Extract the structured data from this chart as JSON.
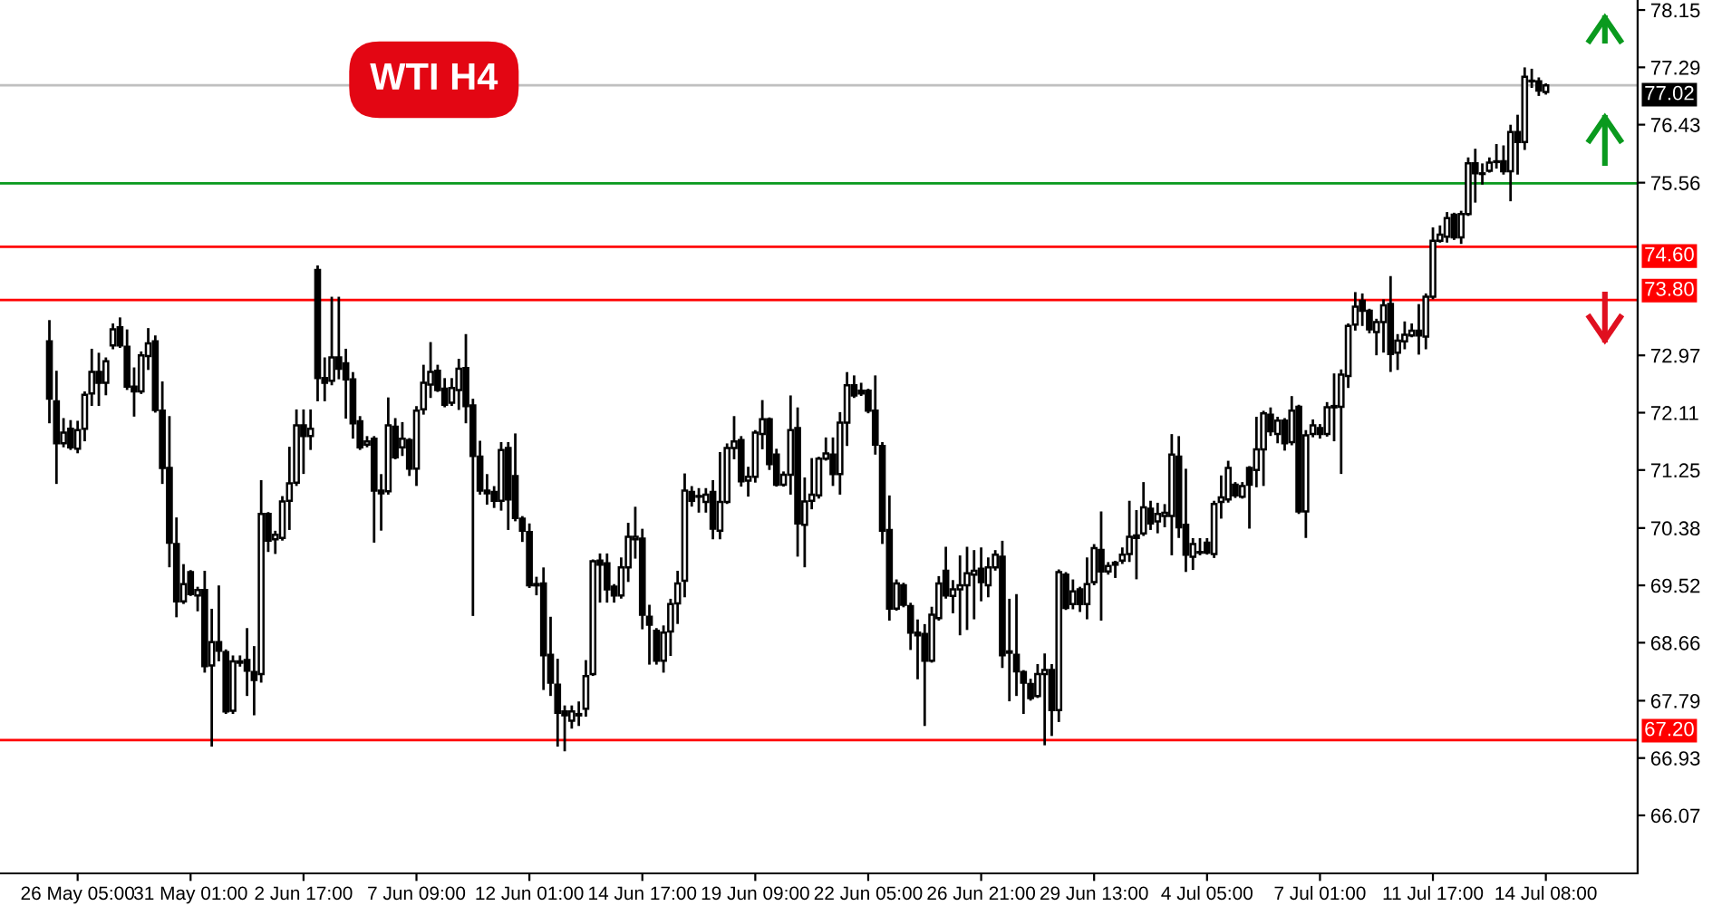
{
  "chart_data": {
    "type": "candlestick",
    "title": "WTI H4",
    "categories": [
      null,
      null,
      null,
      null,
      "26 May 05:00",
      null,
      null,
      null,
      null,
      null,
      null,
      null,
      null,
      null,
      null,
      null,
      null,
      null,
      null,
      null,
      "31 May 01:00",
      null,
      null,
      null,
      null,
      null,
      null,
      null,
      null,
      null,
      null,
      null,
      null,
      null,
      null,
      null,
      "2 Jun 17:00",
      null,
      null,
      null,
      null,
      null,
      null,
      null,
      null,
      null,
      null,
      null,
      null,
      null,
      null,
      null,
      "7 Jun 09:00",
      null,
      null,
      null,
      null,
      null,
      null,
      null,
      null,
      null,
      null,
      null,
      null,
      null,
      null,
      null,
      "12 Jun 01:00",
      null,
      null,
      null,
      null,
      null,
      null,
      null,
      null,
      null,
      null,
      null,
      null,
      null,
      null,
      null,
      "14 Jun 17:00",
      null,
      null,
      null,
      null,
      null,
      null,
      null,
      null,
      null,
      null,
      null,
      null,
      null,
      null,
      null,
      "19 Jun 09:00",
      null,
      null,
      null,
      null,
      null,
      null,
      null,
      null,
      null,
      null,
      null,
      null,
      null,
      null,
      null,
      "22 Jun 05:00",
      null,
      null,
      null,
      null,
      null,
      null,
      null,
      null,
      null,
      null,
      null,
      null,
      null,
      null,
      null,
      "26 Jun 21:00",
      null,
      null,
      null,
      null,
      null,
      null,
      null,
      null,
      null,
      null,
      null,
      null,
      null,
      null,
      null,
      "29 Jun 13:00",
      null,
      null,
      null,
      null,
      null,
      null,
      null,
      null,
      null,
      null,
      null,
      null,
      null,
      null,
      null,
      "4 Jul 05:00",
      null,
      null,
      null,
      null,
      null,
      null,
      null,
      null,
      null,
      null,
      null,
      null,
      null,
      null,
      null,
      "7 Jul 01:00",
      null,
      null,
      null,
      null,
      null,
      null,
      null,
      null,
      null,
      null,
      null,
      null,
      null,
      null,
      null,
      "11 Jul 17:00",
      null,
      null,
      null,
      null,
      null,
      null,
      null,
      null,
      null,
      null,
      null,
      null,
      null,
      null,
      null,
      "14 Jul 08:00"
    ],
    "ohlc": [
      [
        73.18,
        73.48,
        71.97,
        72.32
      ],
      [
        72.28,
        72.72,
        71.06,
        71.65
      ],
      [
        71.65,
        72.01,
        71.61,
        71.81
      ],
      [
        71.87,
        71.98,
        71.57,
        71.59
      ],
      [
        71.57,
        71.97,
        71.52,
        71.85
      ],
      [
        71.87,
        72.41,
        71.7,
        72.38
      ],
      [
        72.4,
        73.05,
        72.23,
        72.72
      ],
      [
        72.72,
        72.99,
        72.23,
        72.56
      ],
      [
        72.56,
        72.92,
        72.39,
        72.88
      ],
      [
        73.12,
        73.43,
        73.08,
        73.36
      ],
      [
        73.39,
        73.52,
        73.1,
        73.12
      ],
      [
        73.1,
        73.34,
        72.47,
        72.5
      ],
      [
        72.5,
        72.77,
        72.07,
        72.43
      ],
      [
        72.43,
        73.01,
        72.41,
        72.97
      ],
      [
        72.96,
        73.36,
        72.77,
        73.15
      ],
      [
        73.18,
        73.25,
        72.13,
        72.15
      ],
      [
        72.14,
        72.56,
        71.06,
        71.28
      ],
      [
        71.28,
        72.04,
        69.81,
        70.16
      ],
      [
        70.14,
        70.52,
        69.06,
        69.28
      ],
      [
        69.28,
        69.82,
        69.26,
        69.54
      ],
      [
        69.72,
        69.73,
        69.38,
        69.39
      ],
      [
        69.37,
        69.48,
        69.15,
        69.45
      ],
      [
        69.45,
        69.72,
        68.23,
        68.31
      ],
      [
        68.32,
        69.15,
        67.12,
        68.67
      ],
      [
        68.67,
        69.5,
        68.4,
        68.54
      ],
      [
        68.52,
        68.54,
        67.61,
        67.63
      ],
      [
        67.64,
        68.45,
        67.61,
        68.38
      ],
      [
        68.36,
        68.45,
        68.32,
        68.38
      ],
      [
        68.4,
        68.86,
        67.88,
        68.24
      ],
      [
        68.22,
        68.59,
        67.59,
        68.1
      ],
      [
        68.19,
        71.08,
        68.08,
        70.59
      ],
      [
        70.59,
        70.6,
        70.04,
        70.19
      ],
      [
        70.21,
        70.32,
        70.01,
        70.28
      ],
      [
        70.23,
        70.84,
        70.21,
        70.78
      ],
      [
        70.79,
        71.58,
        70.37,
        71.05
      ],
      [
        71.06,
        72.14,
        71.03,
        71.92
      ],
      [
        71.92,
        72.14,
        71.21,
        71.76
      ],
      [
        71.76,
        72.14,
        71.57,
        71.87
      ],
      [
        74.25,
        74.3,
        72.3,
        72.63
      ],
      [
        72.63,
        72.92,
        72.3,
        72.56
      ],
      [
        72.59,
        73.83,
        72.54,
        72.94
      ],
      [
        72.94,
        73.83,
        72.63,
        72.77
      ],
      [
        72.85,
        73.05,
        72.04,
        72.61
      ],
      [
        72.61,
        72.7,
        71.74,
        71.95
      ],
      [
        71.98,
        72.04,
        71.57,
        71.59
      ],
      [
        71.63,
        71.74,
        71.61,
        71.68
      ],
      [
        71.72,
        71.74,
        70.18,
        70.94
      ],
      [
        70.94,
        71.17,
        70.36,
        70.9
      ],
      [
        70.93,
        72.32,
        70.9,
        71.92
      ],
      [
        71.9,
        72.01,
        71.43,
        71.44
      ],
      [
        71.59,
        71.95,
        71.48,
        71.72
      ],
      [
        71.7,
        71.71,
        71.18,
        71.27
      ],
      [
        71.27,
        72.19,
        71.03,
        72.14
      ],
      [
        72.16,
        72.81,
        72.1,
        72.56
      ],
      [
        72.53,
        73.15,
        72.35,
        72.72
      ],
      [
        72.74,
        72.81,
        72.44,
        72.45
      ],
      [
        72.47,
        72.61,
        72.21,
        72.23
      ],
      [
        72.26,
        72.61,
        72.23,
        72.48
      ],
      [
        72.45,
        72.9,
        72.17,
        72.77
      ],
      [
        72.78,
        73.27,
        71.97,
        72.21
      ],
      [
        72.22,
        72.3,
        69.08,
        71.46
      ],
      [
        71.45,
        71.67,
        70.9,
        70.94
      ],
      [
        70.94,
        71.17,
        70.75,
        70.9
      ],
      [
        70.92,
        70.99,
        70.7,
        70.79
      ],
      [
        70.79,
        71.65,
        70.66,
        71.55
      ],
      [
        71.58,
        71.65,
        70.37,
        70.81
      ],
      [
        71.16,
        71.78,
        70.5,
        70.53
      ],
      [
        70.52,
        70.54,
        70.19,
        70.34
      ],
      [
        70.32,
        70.43,
        69.5,
        69.52
      ],
      [
        69.54,
        69.63,
        69.39,
        69.52
      ],
      [
        69.55,
        69.77,
        67.97,
        68.47
      ],
      [
        68.48,
        69.03,
        67.88,
        68.06
      ],
      [
        68.03,
        68.4,
        67.12,
        67.61
      ],
      [
        67.63,
        67.7,
        67.05,
        67.57
      ],
      [
        67.49,
        67.7,
        67.39,
        67.63
      ],
      [
        67.57,
        67.76,
        67.43,
        67.59
      ],
      [
        67.67,
        68.38,
        67.57,
        68.16
      ],
      [
        68.19,
        69.89,
        68.18,
        69.88
      ],
      [
        69.89,
        69.98,
        69.28,
        69.83
      ],
      [
        69.85,
        69.98,
        69.28,
        69.46
      ],
      [
        69.5,
        69.52,
        69.28,
        69.37
      ],
      [
        69.37,
        69.92,
        69.34,
        69.79
      ],
      [
        69.79,
        70.44,
        69.59,
        70.25
      ],
      [
        70.21,
        70.68,
        69.94,
        70.25
      ],
      [
        70.22,
        70.35,
        68.88,
        69.08
      ],
      [
        69.05,
        69.21,
        68.35,
        68.93
      ],
      [
        68.84,
        68.86,
        68.35,
        68.39
      ],
      [
        68.39,
        68.9,
        68.23,
        68.81
      ],
      [
        68.83,
        69.3,
        68.48,
        69.24
      ],
      [
        69.25,
        69.72,
        68.96,
        69.55
      ],
      [
        69.59,
        71.18,
        69.36,
        70.94
      ],
      [
        70.92,
        70.99,
        70.72,
        70.79
      ],
      [
        70.86,
        70.96,
        70.63,
        70.85
      ],
      [
        70.77,
        70.96,
        70.63,
        70.88
      ],
      [
        70.92,
        71.08,
        70.23,
        70.37
      ],
      [
        70.34,
        71.5,
        70.23,
        70.77
      ],
      [
        70.77,
        71.63,
        70.76,
        71.58
      ],
      [
        71.58,
        72.04,
        71.43,
        71.68
      ],
      [
        71.7,
        71.74,
        71.02,
        71.08
      ],
      [
        71.09,
        71.28,
        70.87,
        71.15
      ],
      [
        71.15,
        71.83,
        71.08,
        71.81
      ],
      [
        71.79,
        72.28,
        71.58,
        72.01
      ],
      [
        72.01,
        72.02,
        71.27,
        71.34
      ],
      [
        71.48,
        71.55,
        71.02,
        71.03
      ],
      [
        71.03,
        71.21,
        71.02,
        71.18
      ],
      [
        71.18,
        72.35,
        70.9,
        71.85
      ],
      [
        71.88,
        72.17,
        69.97,
        70.45
      ],
      [
        70.43,
        71.12,
        69.81,
        70.78
      ],
      [
        70.79,
        71.41,
        70.68,
        70.88
      ],
      [
        70.87,
        71.43,
        70.84,
        71.42
      ],
      [
        71.42,
        71.72,
        71.41,
        71.5
      ],
      [
        71.48,
        71.72,
        71.03,
        71.19
      ],
      [
        71.19,
        72.1,
        70.9,
        71.96
      ],
      [
        71.96,
        72.7,
        71.63,
        72.52
      ],
      [
        72.52,
        72.65,
        72.35,
        72.37
      ],
      [
        72.44,
        72.54,
        72.38,
        72.4
      ],
      [
        72.44,
        72.45,
        72.12,
        72.14
      ],
      [
        72.14,
        72.65,
        71.5,
        71.63
      ],
      [
        71.61,
        71.65,
        70.16,
        70.34
      ],
      [
        70.35,
        70.85,
        69.01,
        69.17
      ],
      [
        69.17,
        69.59,
        69.16,
        69.55
      ],
      [
        69.52,
        69.54,
        69.21,
        69.23
      ],
      [
        69.21,
        69.24,
        68.57,
        68.81
      ],
      [
        68.81,
        68.99,
        68.13,
        68.77
      ],
      [
        68.79,
        68.92,
        67.43,
        68.39
      ],
      [
        68.39,
        69.18,
        68.38,
        69.08
      ],
      [
        69.03,
        69.64,
        69.01,
        69.55
      ],
      [
        69.74,
        70.08,
        69.34,
        69.37
      ],
      [
        69.36,
        69.58,
        69.12,
        69.46
      ],
      [
        69.46,
        69.95,
        68.79,
        69.52
      ],
      [
        69.52,
        70.08,
        68.87,
        69.7
      ],
      [
        69.68,
        70.03,
        69.03,
        69.74
      ],
      [
        69.77,
        70.07,
        69.3,
        69.57
      ],
      [
        69.52,
        69.92,
        69.36,
        69.79
      ],
      [
        69.79,
        70.03,
        69.76,
        69.98
      ],
      [
        69.95,
        70.17,
        68.3,
        68.47
      ],
      [
        68.53,
        69.3,
        67.8,
        68.51
      ],
      [
        68.48,
        69.37,
        67.88,
        68.23
      ],
      [
        68.22,
        68.23,
        67.61,
        68.06
      ],
      [
        68.04,
        68.1,
        67.81,
        67.83
      ],
      [
        67.86,
        68.32,
        67.85,
        68.19
      ],
      [
        68.19,
        68.48,
        67.14,
        68.25
      ],
      [
        68.25,
        68.32,
        67.28,
        67.65
      ],
      [
        67.65,
        69.74,
        67.49,
        69.72
      ],
      [
        69.68,
        69.7,
        69.17,
        69.18
      ],
      [
        69.24,
        69.59,
        69.18,
        69.43
      ],
      [
        69.46,
        69.48,
        69.14,
        69.24
      ],
      [
        69.24,
        69.92,
        69.03,
        69.54
      ],
      [
        69.57,
        70.12,
        69.54,
        70.08
      ],
      [
        70.05,
        70.61,
        69.01,
        69.73
      ],
      [
        69.73,
        69.85,
        69.7,
        69.81
      ],
      [
        69.83,
        69.87,
        69.65,
        69.86
      ],
      [
        69.89,
        70.07,
        69.86,
        69.98
      ],
      [
        69.99,
        70.77,
        69.89,
        70.25
      ],
      [
        70.27,
        70.63,
        69.63,
        70.23
      ],
      [
        70.3,
        71.05,
        70.28,
        70.69
      ],
      [
        70.67,
        70.77,
        70.37,
        70.45
      ],
      [
        70.48,
        70.74,
        70.32,
        70.59
      ],
      [
        70.56,
        70.72,
        70.41,
        70.61
      ],
      [
        70.56,
        71.77,
        69.99,
        71.48
      ],
      [
        71.45,
        71.74,
        70.25,
        70.39
      ],
      [
        70.43,
        71.25,
        69.74,
        69.98
      ],
      [
        69.95,
        70.21,
        69.77,
        70.14
      ],
      [
        70.01,
        70.21,
        69.99,
        70.02
      ],
      [
        70.16,
        70.21,
        70.0,
        70.01
      ],
      [
        69.99,
        70.77,
        69.95,
        70.74
      ],
      [
        70.77,
        71.15,
        70.54,
        70.84
      ],
      [
        70.81,
        71.37,
        70.78,
        71.28
      ],
      [
        71.03,
        71.05,
        70.85,
        70.87
      ],
      [
        70.85,
        71.05,
        70.84,
        71.01
      ],
      [
        71.28,
        71.29,
        70.39,
        71.03
      ],
      [
        71.25,
        72.03,
        71.01,
        71.56
      ],
      [
        71.56,
        72.12,
        71.03,
        72.1
      ],
      [
        72.08,
        72.17,
        71.78,
        71.83
      ],
      [
        71.79,
        72.03,
        71.67,
        71.99
      ],
      [
        71.99,
        72.01,
        71.56,
        71.65
      ],
      [
        71.67,
        72.34,
        71.64,
        72.14
      ],
      [
        72.2,
        72.21,
        70.61,
        70.63
      ],
      [
        70.63,
        71.83,
        70.25,
        71.77
      ],
      [
        71.79,
        71.99,
        71.76,
        71.92
      ],
      [
        71.88,
        71.92,
        71.74,
        71.79
      ],
      [
        71.79,
        72.25,
        71.77,
        72.19
      ],
      [
        72.19,
        72.68,
        71.7,
        72.21
      ],
      [
        72.2,
        72.74,
        71.21,
        72.68
      ],
      [
        72.66,
        73.43,
        72.5,
        73.41
      ],
      [
        73.43,
        73.9,
        73.36,
        73.7
      ],
      [
        73.79,
        73.88,
        73.43,
        73.64
      ],
      [
        73.64,
        73.65,
        73.32,
        73.36
      ],
      [
        73.32,
        73.5,
        72.99,
        73.47
      ],
      [
        73.47,
        73.79,
        73.03,
        73.72
      ],
      [
        73.74,
        74.14,
        72.74,
        72.99
      ],
      [
        73.01,
        73.27,
        72.77,
        73.19
      ],
      [
        73.18,
        73.46,
        73.08,
        73.28
      ],
      [
        73.27,
        73.43,
        73.26,
        73.34
      ],
      [
        73.34,
        73.72,
        73.0,
        73.27
      ],
      [
        73.25,
        73.88,
        73.08,
        73.85
      ],
      [
        73.85,
        74.87,
        73.83,
        74.69
      ],
      [
        74.69,
        74.9,
        74.68,
        74.78
      ],
      [
        74.75,
        75.1,
        74.68,
        75.03
      ],
      [
        75.08,
        75.09,
        74.72,
        74.74
      ],
      [
        74.74,
        75.12,
        74.66,
        75.09
      ],
      [
        75.09,
        75.92,
        75.08,
        75.85
      ],
      [
        75.85,
        76.05,
        75.28,
        75.7
      ],
      [
        75.7,
        75.83,
        75.55,
        75.69
      ],
      [
        75.74,
        75.92,
        75.73,
        75.86
      ],
      [
        75.88,
        76.12,
        75.79,
        75.87
      ],
      [
        75.88,
        76.1,
        75.7,
        75.73
      ],
      [
        75.73,
        76.41,
        75.3,
        76.32
      ],
      [
        76.32,
        76.56,
        75.7,
        76.17
      ],
      [
        76.17,
        77.27,
        76.07,
        77.15
      ],
      [
        77.09,
        77.25,
        77.0,
        77.08
      ],
      [
        77.08,
        77.12,
        76.88,
        76.94
      ],
      [
        76.92,
        77.03,
        76.9,
        77.02
      ]
    ],
    "ylim": [
      65.2,
      78.3
    ],
    "yticks": [
      66.07,
      66.93,
      67.79,
      68.66,
      69.52,
      70.38,
      71.25,
      72.11,
      72.97,
      75.56,
      76.43,
      77.29,
      78.15
    ],
    "ref_lines": [
      {
        "axis": "y",
        "value": 77.02,
        "label": "77.02",
        "color": "#c0c0c0"
      },
      {
        "axis": "y",
        "value": 75.55,
        "label": null,
        "color": "#0a9a1e"
      },
      {
        "axis": "y",
        "value": 74.6,
        "label": "74.60",
        "color": "#ff0000"
      },
      {
        "axis": "y",
        "value": 73.8,
        "label": "73.80",
        "color": "#ff0000"
      },
      {
        "axis": "y",
        "value": 67.2,
        "label": "67.20",
        "color": "#ff0000"
      }
    ],
    "grid": false,
    "legend": false
  }
}
